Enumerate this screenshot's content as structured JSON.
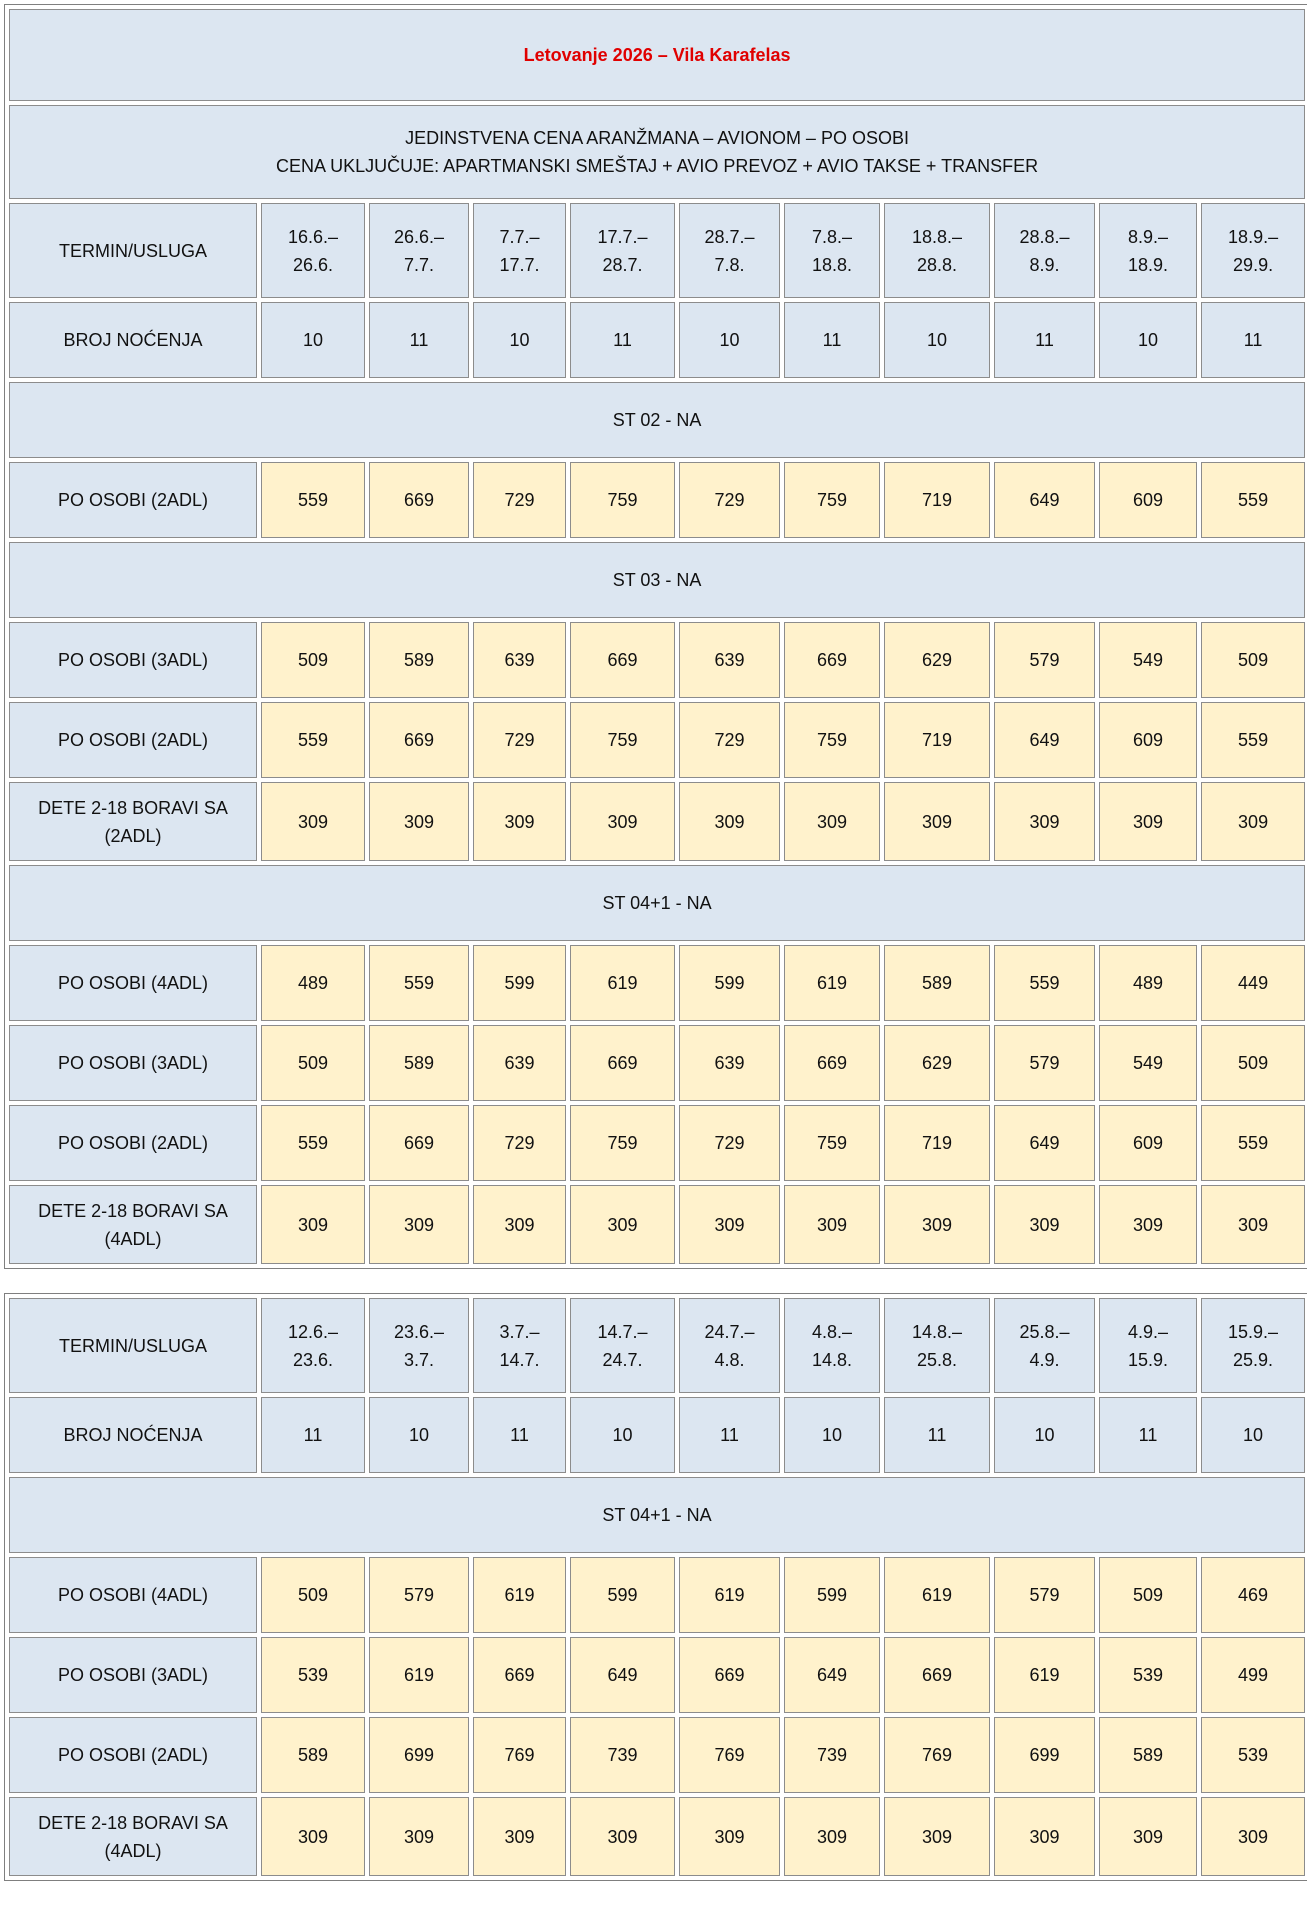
{
  "table1": {
    "title": "Letovanje 2026 – Vila Karafelas",
    "subtitle": [
      "JEDINSTVENA CENA ARANŽMANA – AVIONOM – PO OSOBI",
      "CENA UKLJUČUJE: APARTMANSKI SMEŠTAJ + AVIO PREVOZ + AVIO TAKSE + TRANSFER"
    ],
    "header": {
      "label": "TERMIN/USLUGA",
      "terms": [
        [
          "16.6.–",
          "26.6."
        ],
        [
          "26.6.–",
          "7.7."
        ],
        [
          "7.7.–",
          "17.7."
        ],
        [
          "17.7.–",
          "28.7."
        ],
        [
          "28.7.–",
          "7.8."
        ],
        [
          "7.8.–",
          "18.8."
        ],
        [
          "18.8.–",
          "28.8."
        ],
        [
          "28.8.–",
          "8.9."
        ],
        [
          "8.9.–",
          "18.9."
        ],
        [
          "18.9.–",
          "29.9."
        ]
      ]
    },
    "nights": {
      "label": "BROJ NOĆENJA",
      "values": [
        10,
        11,
        10,
        11,
        10,
        11,
        10,
        11,
        10,
        11
      ]
    },
    "sections": [
      {
        "title": "ST 02 - NA",
        "rows": [
          {
            "label": "PO OSOBI (2ADL)",
            "values": [
              559,
              669,
              729,
              759,
              729,
              759,
              719,
              649,
              609,
              559
            ]
          }
        ]
      },
      {
        "title": "ST 03 - NA",
        "rows": [
          {
            "label": "PO OSOBI (3ADL)",
            "values": [
              509,
              589,
              639,
              669,
              639,
              669,
              629,
              579,
              549,
              509
            ]
          },
          {
            "label": "PO OSOBI (2ADL)",
            "values": [
              559,
              669,
              729,
              759,
              729,
              759,
              719,
              649,
              609,
              559
            ]
          },
          {
            "label": "DETE 2-18 BORAVI SA (2ADL)",
            "values": [
              309,
              309,
              309,
              309,
              309,
              309,
              309,
              309,
              309,
              309
            ]
          }
        ]
      },
      {
        "title": "ST 04+1 - NA",
        "rows": [
          {
            "label": "PO OSOBI (4ADL)",
            "values": [
              489,
              559,
              599,
              619,
              599,
              619,
              589,
              559,
              489,
              449
            ]
          },
          {
            "label": "PO OSOBI (3ADL)",
            "values": [
              509,
              589,
              639,
              669,
              639,
              669,
              629,
              579,
              549,
              509
            ]
          },
          {
            "label": "PO OSOBI (2ADL)",
            "values": [
              559,
              669,
              729,
              759,
              729,
              759,
              719,
              649,
              609,
              559
            ]
          },
          {
            "label": "DETE 2-18 BORAVI SA (4ADL)",
            "values": [
              309,
              309,
              309,
              309,
              309,
              309,
              309,
              309,
              309,
              309
            ]
          }
        ]
      }
    ]
  },
  "table2": {
    "header": {
      "label": "TERMIN/USLUGA",
      "terms": [
        [
          "12.6.–",
          "23.6."
        ],
        [
          "23.6.–",
          "3.7."
        ],
        [
          "3.7.–",
          "14.7."
        ],
        [
          "14.7.–",
          "24.7."
        ],
        [
          "24.7.–",
          "4.8."
        ],
        [
          "4.8.–",
          "14.8."
        ],
        [
          "14.8.–",
          "25.8."
        ],
        [
          "25.8.–",
          "4.9."
        ],
        [
          "4.9.–",
          "15.9."
        ],
        [
          "15.9.–",
          "25.9."
        ]
      ]
    },
    "nights": {
      "label": "BROJ NOĆENJA",
      "values": [
        11,
        10,
        11,
        10,
        11,
        10,
        11,
        10,
        11,
        10
      ]
    },
    "sections": [
      {
        "title": "ST 04+1 - NA",
        "rows": [
          {
            "label": "PO OSOBI (4ADL)",
            "values": [
              509,
              579,
              619,
              599,
              619,
              599,
              619,
              579,
              509,
              469
            ]
          },
          {
            "label": "PO OSOBI (3ADL)",
            "values": [
              539,
              619,
              669,
              649,
              669,
              649,
              669,
              619,
              539,
              499
            ]
          },
          {
            "label": "PO OSOBI (2ADL)",
            "values": [
              589,
              699,
              769,
              739,
              769,
              739,
              769,
              699,
              589,
              539
            ]
          },
          {
            "label": "DETE 2-18 BORAVI SA (4ADL)",
            "values": [
              309,
              309,
              309,
              309,
              309,
              309,
              309,
              309,
              309,
              309
            ]
          }
        ]
      }
    ]
  }
}
